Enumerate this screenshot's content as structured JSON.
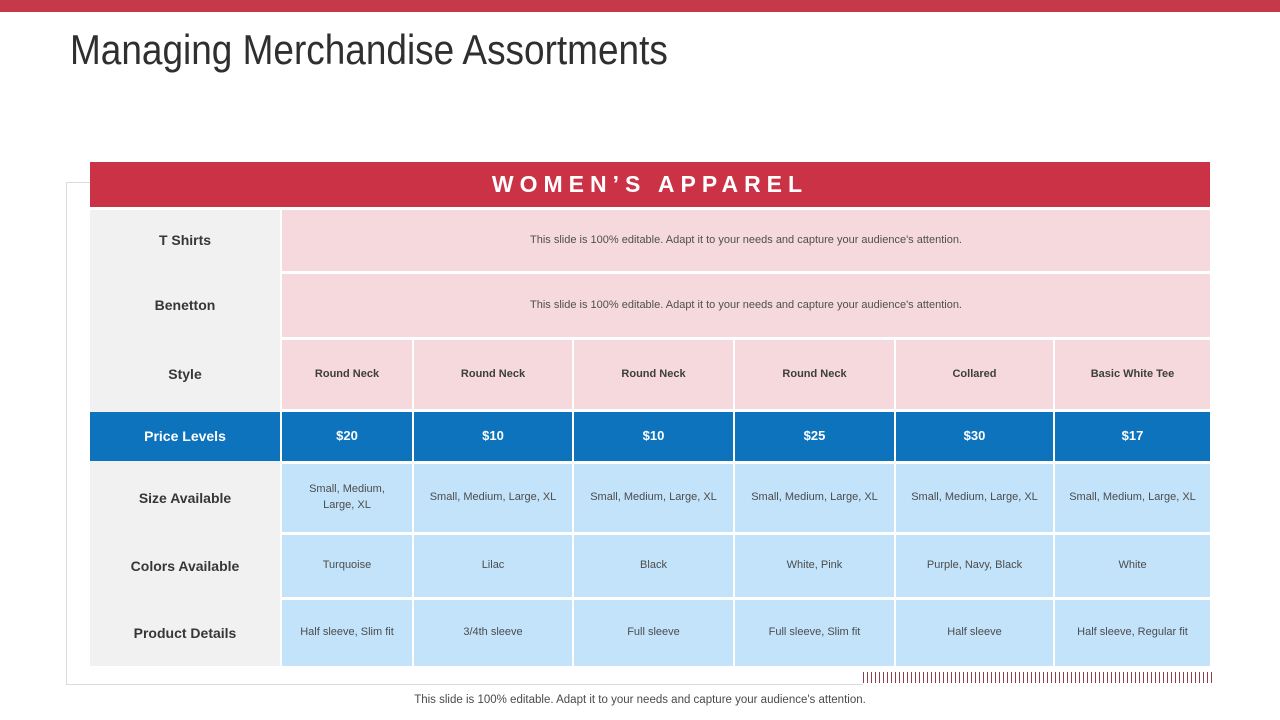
{
  "slide": {
    "title": "Managing Merchandise Assortments",
    "footer": "This slide is 100% editable. Adapt it to your needs and capture your audience's attention."
  },
  "table": {
    "header": "WOMEN’S APPAREL",
    "rows": [
      {
        "label": "T Shirts",
        "text": "This slide is 100% editable. Adapt it to your needs and capture your audience's attention."
      },
      {
        "label": "Benetton",
        "text": "This slide is 100% editable. Adapt it to your needs and capture your audience's attention."
      },
      {
        "label": "Style",
        "cells": [
          "Round Neck",
          "Round Neck",
          "Round Neck",
          "Round Neck",
          "Collared",
          "Basic White Tee"
        ]
      },
      {
        "label": "Price Levels",
        "cells": [
          "$20",
          "$10",
          "$10",
          "$25",
          "$30",
          "$17"
        ]
      },
      {
        "label": "Size Available",
        "cells": [
          "Small, Medium, Large, XL",
          "Small, Medium, Large, XL",
          "Small, Medium, Large, XL",
          "Small, Medium, Large, XL",
          "Small, Medium, Large, XL",
          "Small, Medium, Large, XL"
        ]
      },
      {
        "label": "Colors Available",
        "cells": [
          "Turquoise",
          "Lilac",
          "Black",
          "White, Pink",
          "Purple, Navy, Black",
          "White"
        ]
      },
      {
        "label": "Product Details",
        "cells": [
          "Half sleeve, Slim fit",
          "3/4th sleeve",
          "Full sleeve",
          "Full sleeve, Slim fit",
          "Half sleeve",
          "Half sleeve, Regular fit"
        ]
      }
    ],
    "colors": {
      "top_bar": "#c6394b",
      "header_red": "#cc3245",
      "pink_cell": "#f5d9dc",
      "price_blue": "#0d73bc",
      "light_blue_cell": "#c2e3fa",
      "label_gray": "#f1f1f2",
      "hatch_red": "#8f3e4a",
      "frame_gray": "#dbdbdb"
    }
  }
}
